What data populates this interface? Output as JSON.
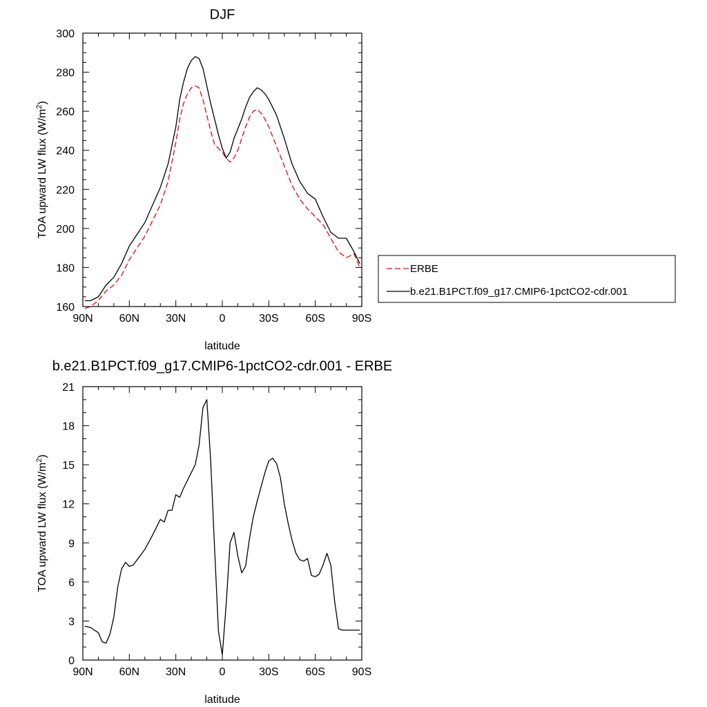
{
  "chart_data": [
    {
      "type": "line",
      "title": "DJF",
      "xlabel": "latitude",
      "ylabel_main": "TOA upward LW flux (W/m",
      "ylabel_sup": "2",
      "ylabel_close": ")",
      "xlim": [
        90,
        -90
      ],
      "ylim": [
        160,
        300
      ],
      "xticks": [
        {
          "value": 90,
          "label": "90N"
        },
        {
          "value": 60,
          "label": "60N"
        },
        {
          "value": 30,
          "label": "30N"
        },
        {
          "value": 0,
          "label": "0"
        },
        {
          "value": -30,
          "label": "30S"
        },
        {
          "value": -60,
          "label": "60S"
        },
        {
          "value": -90,
          "label": "90S"
        }
      ],
      "yticks": [
        160,
        180,
        200,
        220,
        240,
        260,
        280,
        300
      ],
      "legend": {
        "position": "right",
        "items": [
          {
            "name": "ERBE",
            "color": "#e8000b",
            "dash": "dashed"
          },
          {
            "name": "b.e21.B1PCT.f09_g17.CMIP6-1pctCO2-cdr.001",
            "color": "#000000",
            "dash": "solid"
          }
        ]
      },
      "series": [
        {
          "name": "ERBE",
          "color": "#e8000b",
          "dash": "dashed",
          "x": [
            88.75,
            85,
            80,
            75,
            70,
            65,
            60,
            55,
            50,
            45,
            40,
            35,
            30,
            27.5,
            25,
            22.5,
            20,
            17.5,
            15,
            12.5,
            10,
            7.5,
            5,
            2.5,
            0,
            -2.5,
            -5,
            -7.5,
            -10,
            -12.5,
            -15,
            -17.5,
            -20,
            -22.5,
            -25,
            -27.5,
            -30,
            -35,
            -40,
            -45,
            -50,
            -55,
            -60,
            -65,
            -70,
            -75,
            -80,
            -85,
            -88.75
          ],
          "y": [
            159,
            160,
            163,
            168,
            171,
            176,
            184,
            190,
            196,
            204,
            212,
            224,
            244,
            256,
            264,
            269,
            272,
            273,
            272,
            266,
            258,
            250,
            243,
            241,
            239,
            236,
            234,
            236,
            240,
            246,
            252,
            257,
            260,
            261,
            259,
            256,
            252,
            242,
            232,
            222,
            215,
            210,
            206,
            202,
            195,
            188,
            185,
            187,
            180
          ]
        },
        {
          "name": "b.e21.B1PCT.f09_g17.CMIP6-1pctCO2-cdr.001",
          "color": "#000000",
          "dash": "solid",
          "x": [
            88.75,
            85,
            80,
            75,
            70,
            65,
            60,
            55,
            50,
            45,
            40,
            35,
            30,
            27.5,
            25,
            22.5,
            20,
            17.5,
            15,
            12.5,
            10,
            7.5,
            5,
            2.5,
            0,
            -2.5,
            -5,
            -7.5,
            -10,
            -12.5,
            -15,
            -17.5,
            -20,
            -22.5,
            -25,
            -27.5,
            -30,
            -35,
            -40,
            -45,
            -50,
            -55,
            -60,
            -65,
            -70,
            -75,
            -80,
            -85,
            -88.75
          ],
          "y": [
            163,
            163,
            165,
            171,
            175,
            182,
            191,
            197,
            203,
            212,
            221,
            233,
            252,
            266,
            275,
            282,
            286,
            288,
            287,
            282,
            273,
            264,
            256,
            248,
            241,
            236,
            239,
            246,
            251,
            256,
            262,
            267,
            270,
            272,
            271,
            269,
            266,
            258,
            246,
            233,
            224,
            218,
            215,
            206,
            198,
            195,
            195,
            188,
            182
          ]
        }
      ]
    },
    {
      "type": "line",
      "title": "b.e21.B1PCT.f09_g17.CMIP6-1pctCO2-cdr.001 - ERBE",
      "xlabel": "latitude",
      "ylabel_main": "TOA upward LW flux (W/m",
      "ylabel_sup": "2",
      "ylabel_close": ")",
      "xlim": [
        90,
        -90
      ],
      "ylim": [
        0,
        21
      ],
      "xticks": [
        {
          "value": 90,
          "label": "90N"
        },
        {
          "value": 60,
          "label": "60N"
        },
        {
          "value": 30,
          "label": "30N"
        },
        {
          "value": 0,
          "label": "0"
        },
        {
          "value": -30,
          "label": "30S"
        },
        {
          "value": -60,
          "label": "60S"
        },
        {
          "value": -90,
          "label": "90S"
        }
      ],
      "yticks": [
        0,
        3,
        6,
        9,
        12,
        15,
        18,
        21
      ],
      "series": [
        {
          "name": "b.e21.B1PCT.f09_g17.CMIP6-1pctCO2-cdr.001 - ERBE",
          "color": "#000000",
          "dash": "solid",
          "x": [
            88.75,
            85,
            80,
            77.5,
            75,
            72.5,
            70,
            67.5,
            65,
            62.5,
            60,
            57.5,
            55,
            50,
            45,
            40,
            37.5,
            35,
            32.5,
            30,
            27.5,
            25,
            22.5,
            20,
            17.5,
            15,
            12.5,
            10,
            7.5,
            5,
            2.5,
            0,
            -2.5,
            -5,
            -7.5,
            -10,
            -12.5,
            -15,
            -17.5,
            -20,
            -22.5,
            -25,
            -27.5,
            -30,
            -32.5,
            -35,
            -37.5,
            -40,
            -42.5,
            -45,
            -47.5,
            -50,
            -52.5,
            -55,
            -57.5,
            -60,
            -62.5,
            -65,
            -67.5,
            -70,
            -72.5,
            -75,
            -77.5,
            -80,
            -82.5,
            -85,
            -87.5,
            -88.75
          ],
          "y": [
            2.6,
            2.5,
            2.1,
            1.4,
            1.3,
            2.0,
            3.3,
            5.6,
            7.0,
            7.5,
            7.2,
            7.3,
            7.7,
            8.5,
            9.6,
            10.8,
            10.6,
            11.5,
            11.5,
            12.7,
            12.5,
            13.2,
            13.8,
            14.4,
            15.0,
            16.5,
            19.4,
            20.0,
            15.3,
            8.6,
            2.2,
            0.4,
            4.3,
            9.0,
            9.8,
            8.0,
            6.7,
            7.2,
            9.3,
            11.0,
            12.2,
            13.3,
            14.4,
            15.3,
            15.5,
            15.1,
            14.0,
            12.0,
            10.5,
            9.2,
            8.2,
            7.7,
            7.6,
            7.8,
            6.5,
            6.4,
            6.6,
            7.3,
            8.2,
            7.3,
            4.5,
            2.4,
            2.3,
            2.3,
            2.3,
            2.3,
            2.3,
            2.3
          ]
        }
      ]
    }
  ]
}
